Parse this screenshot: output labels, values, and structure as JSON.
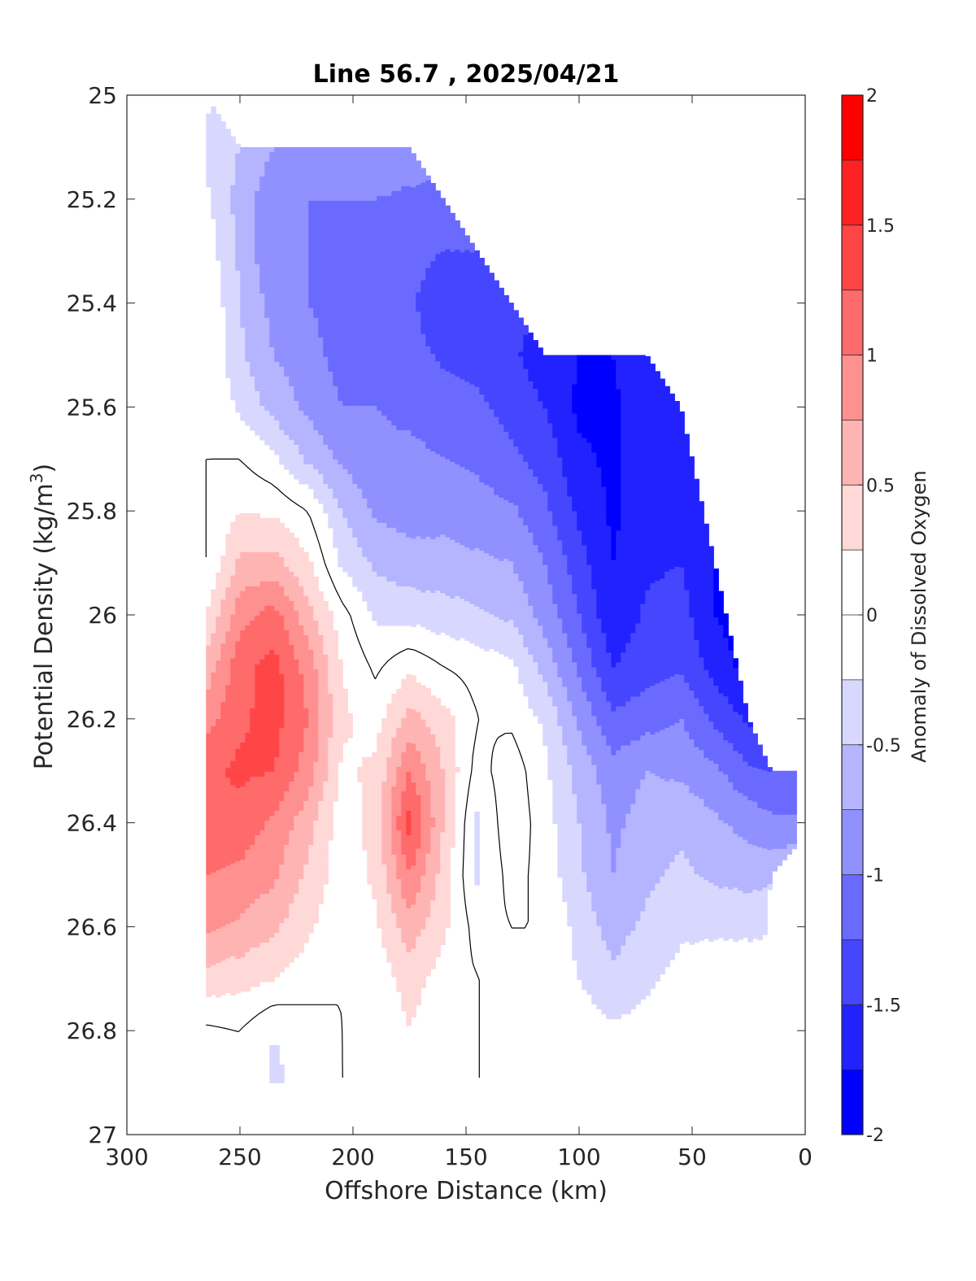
{
  "chart_data": {
    "type": "heatmap",
    "subtype": "filled-contour",
    "title": "Line 56.7 , 2025/04/21",
    "xlabel": "Offshore Distance (km)",
    "ylabel": "Potential Density (kg/m",
    "ylabel_superscript": "3",
    "ylabel_suffix": ")",
    "colorbar_label": "Anomaly of Dissolved Oxygen",
    "xlim": [
      300,
      0
    ],
    "ylim": [
      25,
      27
    ],
    "y_reversed": true,
    "x_reversed": true,
    "xticks": [
      300,
      250,
      200,
      150,
      100,
      50,
      0
    ],
    "xtick_labels": [
      "300",
      "250",
      "200",
      "150",
      "100",
      "50",
      "0"
    ],
    "yticks": [
      25,
      25.2,
      25.4,
      25.6,
      25.8,
      26,
      26.2,
      26.4,
      26.6,
      26.8,
      27
    ],
    "ytick_labels": [
      "25",
      "25.2",
      "25.4",
      "25.6",
      "25.8",
      "26",
      "26.2",
      "26.4",
      "26.6",
      "26.8",
      "27"
    ],
    "colorbar_range": [
      -2,
      2
    ],
    "colorbar_ticks": [
      2,
      1.5,
      1,
      0.5,
      0,
      -0.5,
      -1,
      -1.5,
      -2
    ],
    "colorbar_tick_labels": [
      "2",
      "1.5",
      "1",
      "0.5",
      "0",
      "-0.5",
      "-1",
      "-1.5",
      "-2"
    ],
    "contour_step": 0.25,
    "colormap": [
      "#0000ff",
      "#2222ff",
      "#4646ff",
      "#6a6aff",
      "#9090ff",
      "#b4b4ff",
      "#d8d8ff",
      "#ffffff",
      "#ffffff",
      "#ffd8d8",
      "#ffb4b4",
      "#ff9090",
      "#ff6a6a",
      "#ff4646",
      "#ff2222",
      "#ff0000"
    ],
    "zero_contour_color": "#000000",
    "x": [
      265,
      250,
      235,
      220,
      205,
      190,
      175,
      160,
      145,
      130,
      115,
      100,
      85,
      70,
      55,
      40,
      25,
      15,
      5
    ],
    "y": [
      25.0,
      25.1,
      25.2,
      25.3,
      25.4,
      25.5,
      25.6,
      25.7,
      25.8,
      25.9,
      26.0,
      26.1,
      26.2,
      26.3,
      26.4,
      26.5,
      26.6,
      26.7,
      26.8,
      26.9
    ],
    "y_top_valid": [
      25.0,
      25.1,
      25.1,
      25.1,
      25.1,
      25.1,
      25.1,
      25.2,
      25.3,
      25.4,
      25.5,
      25.5,
      25.5,
      25.5,
      25.6,
      25.9,
      26.2,
      26.3,
      26.3
    ],
    "y_bottom_valid": [
      26.9,
      26.9,
      26.9,
      26.9,
      26.9,
      26.9,
      26.9,
      26.9,
      26.9,
      26.9,
      26.9,
      26.9,
      26.9,
      26.9,
      26.9,
      26.9,
      26.9,
      26.5,
      26.45
    ],
    "z": [
      [
        -0.2,
        -0.3,
        -0.35,
        -0.4,
        -0.4,
        -0.4,
        -0.4,
        -0.35,
        -0.3,
        -0.25,
        -0.2,
        -0.15,
        -0.1,
        -0.05,
        0.0,
        0.0,
        0.0,
        0.0,
        0.0
      ],
      [
        -0.3,
        -0.5,
        -0.75,
        -0.75,
        -0.8,
        -0.8,
        -0.85,
        -0.85,
        -0.85,
        -0.85,
        -0.8,
        -0.8,
        -0.8,
        -0.8,
        -0.8,
        -0.8,
        -0.8,
        -0.7,
        -0.7
      ],
      [
        -0.2,
        -0.6,
        -0.95,
        -1.0,
        -1.0,
        -1.0,
        -1.05,
        -1.1,
        -1.1,
        -1.1,
        -1.05,
        -1.05,
        -1.05,
        -1.05,
        -1.05,
        -1.05,
        -1.05,
        -1.0,
        -1.0
      ],
      [
        -0.1,
        -0.55,
        -1.0,
        -1.0,
        -1.1,
        -1.15,
        -1.15,
        -1.25,
        -1.25,
        -1.2,
        -1.2,
        -1.2,
        -1.2,
        -1.2,
        -1.2,
        -1.2,
        -1.2,
        -1.2,
        -1.2
      ],
      [
        0.0,
        -0.5,
        -0.85,
        -1.0,
        -1.1,
        -1.1,
        -1.2,
        -1.45,
        -1.5,
        -1.45,
        -1.45,
        -1.45,
        -1.45,
        -1.45,
        -1.45,
        -1.45,
        -1.45,
        -1.45,
        -1.45
      ],
      [
        0.0,
        -0.45,
        -0.75,
        -0.9,
        -1.1,
        -1.1,
        -1.15,
        -1.3,
        -1.35,
        -1.45,
        -1.65,
        -1.75,
        -1.75,
        -1.55,
        -1.5,
        -1.5,
        -1.5,
        -1.5,
        -1.5
      ],
      [
        0.0,
        -0.3,
        -0.6,
        -0.8,
        -1.0,
        -1.0,
        -1.05,
        -1.1,
        -1.2,
        -1.35,
        -1.5,
        -1.8,
        -1.8,
        -1.6,
        -1.55,
        -1.6,
        -1.6,
        -1.6,
        -1.6
      ],
      [
        0.0,
        0.0,
        -0.2,
        -0.55,
        -0.8,
        -0.95,
        -0.95,
        -1.0,
        -1.05,
        -1.2,
        -1.35,
        -1.7,
        -1.8,
        -1.6,
        -1.5,
        -1.65,
        -1.7,
        -1.7,
        -1.7
      ],
      [
        0.0,
        0.25,
        0.2,
        0.0,
        -0.5,
        -0.8,
        -0.85,
        -0.85,
        -0.9,
        -0.95,
        -1.2,
        -1.55,
        -1.8,
        -1.6,
        -1.5,
        -1.7,
        -1.8,
        -1.8,
        -1.8
      ],
      [
        0.0,
        0.55,
        0.6,
        0.3,
        -0.3,
        -0.55,
        -0.65,
        -0.65,
        -0.7,
        -0.75,
        -1.0,
        -1.4,
        -1.75,
        -1.55,
        -1.5,
        -1.75,
        -1.85,
        -1.85,
        -1.85
      ],
      [
        0.25,
        0.9,
        1.1,
        0.6,
        0.1,
        -0.3,
        -0.35,
        -0.4,
        -0.45,
        -0.55,
        -0.85,
        -1.25,
        -1.7,
        -1.45,
        -1.4,
        -1.75,
        -1.9,
        -1.9,
        -1.9
      ],
      [
        0.6,
        1.15,
        1.35,
        0.9,
        0.25,
        -0.05,
        0.2,
        0.0,
        -0.1,
        -0.2,
        -0.6,
        -1.05,
        -1.5,
        -1.35,
        -1.3,
        -1.6,
        -1.85,
        -1.85,
        -1.85
      ],
      [
        0.9,
        1.2,
        1.35,
        1.0,
        0.3,
        0.15,
        0.6,
        0.35,
        0.0,
        -0.05,
        -0.3,
        -0.8,
        -1.2,
        -1.1,
        -1.0,
        -1.3,
        -1.55,
        -1.6,
        -1.6
      ],
      [
        1.2,
        1.3,
        1.25,
        0.9,
        0.2,
        0.3,
        1.0,
        0.5,
        -0.1,
        0.15,
        -0.2,
        -0.6,
        -0.9,
        -0.75,
        -0.8,
        -0.95,
        -1.2,
        -1.25,
        -1.25
      ],
      [
        1.2,
        1.15,
        0.95,
        0.6,
        0.1,
        0.35,
        1.35,
        0.5,
        -0.3,
        0.2,
        -0.15,
        -0.5,
        -0.8,
        -0.65,
        -0.55,
        -0.7,
        -0.85,
        -0.95,
        -0.95
      ],
      [
        1.0,
        0.95,
        0.8,
        0.45,
        0.1,
        0.3,
        1.0,
        0.4,
        -0.3,
        0.1,
        -0.1,
        -0.45,
        -0.75,
        -0.55,
        -0.45,
        -0.55,
        -0.6,
        -0.55,
        -0.5
      ],
      [
        0.8,
        0.7,
        0.55,
        0.3,
        0.05,
        0.2,
        0.65,
        0.3,
        -0.1,
        0.0,
        0.0,
        -0.35,
        -0.6,
        -0.45,
        -0.3,
        -0.3,
        -0.3,
        -0.3,
        -0.3
      ],
      [
        0.4,
        0.35,
        0.25,
        0.1,
        0.0,
        0.1,
        0.35,
        0.15,
        0.0,
        0.0,
        0.0,
        -0.25,
        -0.45,
        -0.3,
        -0.15,
        -0.1,
        -0.1,
        -0.1,
        -0.1
      ],
      [
        -0.05,
        0.0,
        -0.25,
        -0.1,
        0.0,
        0.05,
        0.25,
        0.05,
        0.0,
        0.0,
        0.0,
        -0.1,
        -0.2,
        -0.15,
        -0.05,
        0.0,
        0.0,
        0.0,
        0.0
      ],
      [
        -0.05,
        0.0,
        -0.3,
        -0.15,
        0.0,
        0.0,
        0.15,
        0.0,
        0.0,
        0.0,
        0.0,
        0.0,
        -0.05,
        0.0,
        0.0,
        0.0,
        0.0,
        0.0,
        0.0
      ]
    ]
  }
}
